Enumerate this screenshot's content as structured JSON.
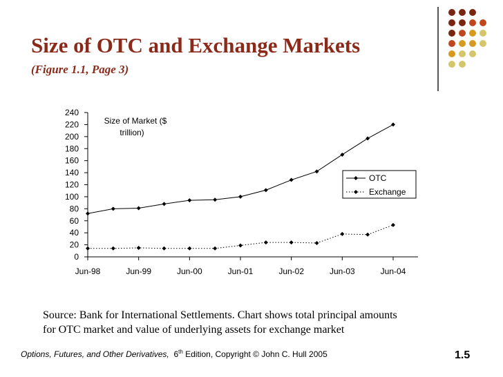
{
  "slide": {
    "title": "Size of OTC and Exchange Markets",
    "subtitle": "(Figure 1.1, Page 3)",
    "source_line1": "Source: Bank for International Settlements. Chart shows total principal amounts",
    "source_line2": "for OTC market and value of underlying assets for exchange market",
    "footer_book": "Options, Futures, and Other Derivatives,",
    "footer_edition_num": "6",
    "footer_edition_sup": "th",
    "footer_rest": " Edition, Copyright © John C. Hull 2005",
    "page_number": "1.5",
    "title_color": "#8b2a1a",
    "decor_colors": [
      "#7a2512",
      "#c0461e",
      "#d79a1e",
      "#d4c76b"
    ]
  },
  "chart_data": {
    "type": "line",
    "annotation_line1": "Size of Market ($",
    "annotation_line2": "trillion)",
    "x_tick_labels": [
      "Jun-98",
      "Jun-99",
      "Jun-00",
      "Jun-01",
      "Jun-02",
      "Jun-03",
      "Jun-04"
    ],
    "x": [
      "Jun-98",
      "Dec-98",
      "Jun-99",
      "Dec-99",
      "Jun-00",
      "Dec-00",
      "Jun-01",
      "Dec-01",
      "Jun-02",
      "Dec-02",
      "Jun-03",
      "Dec-03",
      "Jun-04"
    ],
    "ylim": [
      0,
      240
    ],
    "yticks": [
      0,
      20,
      40,
      60,
      80,
      100,
      120,
      140,
      160,
      180,
      200,
      220,
      240
    ],
    "legend_position": "right",
    "grid": false,
    "series": [
      {
        "name": "OTC",
        "style": "solid",
        "values": [
          72,
          80,
          81,
          88,
          94,
          95,
          100,
          111,
          128,
          142,
          170,
          197,
          220
        ]
      },
      {
        "name": "Exchange",
        "style": "dotted",
        "values": [
          14,
          14,
          15,
          14,
          14,
          14,
          19,
          24,
          24,
          23,
          38,
          37,
          53
        ]
      }
    ]
  }
}
